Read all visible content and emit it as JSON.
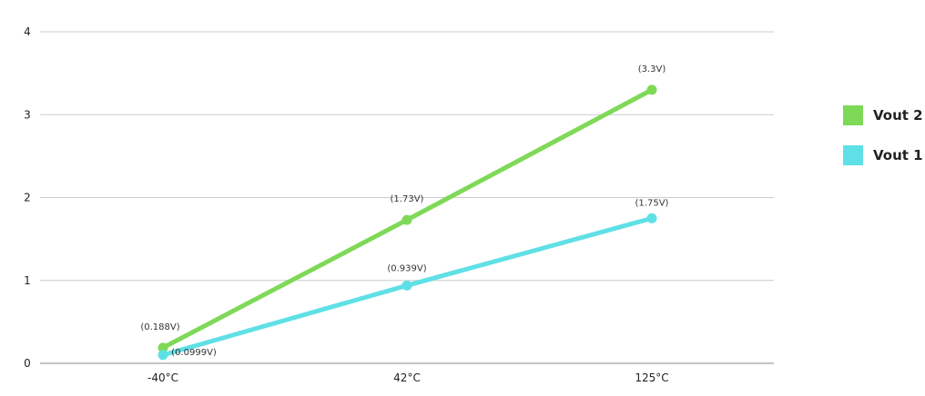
{
  "chart_data": {
    "type": "line",
    "categories": [
      "-40°C",
      "42°C",
      "125°C"
    ],
    "y_ticks": [
      "0",
      "1",
      "2",
      "3",
      "4"
    ],
    "ylim": [
      0,
      4
    ],
    "grid": true,
    "legend_position": "right",
    "series": [
      {
        "name": "Vout 2",
        "color": "#7ed957",
        "values": [
          0.188,
          1.73,
          3.3
        ],
        "labels": [
          "(0.188V)",
          "(1.73V)",
          "(3.3V)"
        ]
      },
      {
        "name": "Vout 1",
        "color": "#5ee0e6",
        "values": [
          0.0999,
          0.939,
          1.75
        ],
        "labels": [
          "(0.0999V)",
          "(0.939V)",
          "(1.75V)"
        ]
      }
    ]
  }
}
